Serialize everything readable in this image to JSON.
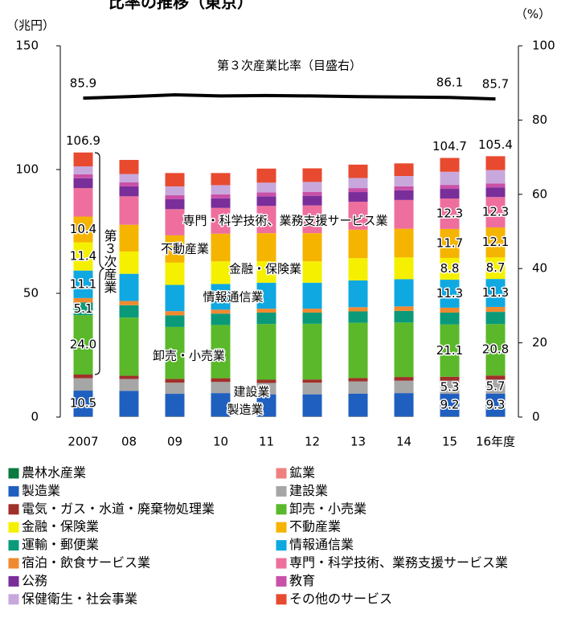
{
  "chart_data": {
    "type": "bar",
    "title": "比率の推移（東京）",
    "y_unit": "（兆円）",
    "y2_unit": "（%）",
    "categories": [
      "2007",
      "08",
      "09",
      "10",
      "11",
      "12",
      "13",
      "14",
      "15",
      "16年度"
    ],
    "ylim": [
      0,
      150
    ],
    "yticks": [
      0,
      50,
      100,
      150
    ],
    "y2lim": [
      0,
      100
    ],
    "y2ticks": [
      0,
      20,
      40,
      60,
      80,
      100
    ],
    "stacked": true,
    "total_labels": [
      "106.9",
      null,
      null,
      null,
      null,
      null,
      null,
      null,
      "104.7",
      "105.4"
    ],
    "series": [
      {
        "name": "農林水産業",
        "color": "#0b7a3e",
        "values": [
          0.1,
          0.1,
          0.1,
          0.1,
          0.1,
          0.1,
          0.1,
          0.1,
          0.1,
          0.1
        ]
      },
      {
        "name": "鉱業",
        "color": "#f08080",
        "values": [
          0.1,
          0.1,
          0.1,
          0.1,
          0.1,
          0.1,
          0.1,
          0.1,
          0.1,
          0.1
        ]
      },
      {
        "name": "製造業",
        "color": "#1f5fbf",
        "values": [
          10.5,
          10.4,
          9.2,
          9.5,
          9.0,
          9.0,
          9.3,
          9.5,
          9.2,
          9.3
        ],
        "value_labels": [
          "10.5",
          null,
          null,
          null,
          null,
          null,
          null,
          null,
          "9.2",
          "9.3"
        ]
      },
      {
        "name": "建設業",
        "color": "#a6a6a6",
        "values": [
          5.0,
          4.8,
          4.5,
          4.5,
          4.6,
          4.7,
          4.9,
          5.0,
          5.3,
          5.7
        ],
        "value_labels": [
          null,
          null,
          null,
          null,
          null,
          null,
          null,
          null,
          "5.3",
          "5.7"
        ]
      },
      {
        "name": "電気・ガス・水道・廃棄物処理業",
        "color": "#a0302a",
        "values": [
          1.5,
          1.3,
          1.5,
          1.5,
          1.3,
          1.3,
          1.4,
          1.5,
          1.6,
          1.6
        ]
      },
      {
        "name": "卸売・小売業",
        "color": "#5ab82a",
        "values": [
          24.0,
          23.5,
          21.0,
          21.5,
          22.5,
          22.5,
          22.3,
          22.0,
          21.1,
          20.8
        ],
        "value_labels": [
          "24.0",
          null,
          null,
          null,
          null,
          null,
          null,
          null,
          "21.1",
          "20.8"
        ]
      },
      {
        "name": "金融・保険業",
        "color": "#f5f000",
        "values": [
          11.4,
          9.0,
          9.0,
          9.1,
          8.7,
          8.6,
          9.0,
          8.8,
          8.8,
          8.7
        ],
        "value_labels": [
          "11.4",
          null,
          null,
          null,
          null,
          null,
          null,
          null,
          "8.8",
          "8.7"
        ]
      },
      {
        "name": "不動産業",
        "color": "#f5b400",
        "values": [
          10.4,
          10.8,
          11.0,
          11.2,
          11.3,
          11.4,
          11.5,
          11.6,
          11.7,
          12.1
        ],
        "value_labels": [
          "10.4",
          null,
          null,
          null,
          null,
          null,
          null,
          null,
          "11.7",
          "12.1"
        ]
      },
      {
        "name": "運輸・郵便業",
        "color": "#0a9a7a",
        "values": [
          5.1,
          5.0,
          4.7,
          4.6,
          4.6,
          4.5,
          4.6,
          4.7,
          4.8,
          4.9
        ],
        "value_labels": [
          "5.1",
          null,
          null,
          null,
          null,
          null,
          null,
          null,
          null,
          null
        ]
      },
      {
        "name": "情報通信業",
        "color": "#10a8e0",
        "values": [
          11.1,
          11.0,
          10.6,
          10.4,
          10.5,
          10.5,
          10.8,
          11.0,
          11.3,
          11.3
        ],
        "value_labels": [
          "11.1",
          null,
          null,
          null,
          null,
          null,
          null,
          null,
          "11.3",
          "11.3"
        ]
      },
      {
        "name": "宿泊・飲食サービス業",
        "color": "#f08a30",
        "values": [
          1.8,
          1.7,
          1.7,
          1.6,
          1.6,
          1.6,
          1.7,
          1.8,
          2.0,
          2.0
        ]
      },
      {
        "name": "専門・科学技術、業務支援サービス業",
        "color": "#ee6f9e",
        "values": [
          11.5,
          11.5,
          10.6,
          10.4,
          11.0,
          11.2,
          11.3,
          11.6,
          12.3,
          12.3
        ],
        "value_labels": [
          null,
          null,
          null,
          null,
          null,
          null,
          null,
          null,
          "12.3",
          "12.3"
        ]
      },
      {
        "name": "公務",
        "color": "#7a2e9a",
        "values": [
          4.0,
          4.0,
          4.0,
          3.9,
          3.9,
          3.9,
          3.9,
          3.9,
          3.9,
          3.9
        ]
      },
      {
        "name": "教育",
        "color": "#c850a8",
        "values": [
          1.6,
          1.6,
          1.6,
          1.6,
          1.6,
          1.6,
          1.6,
          1.6,
          1.6,
          1.6
        ]
      },
      {
        "name": "保健衛生・社会事業",
        "color": "#c8a8dc",
        "values": [
          3.2,
          3.4,
          3.6,
          3.7,
          3.9,
          4.0,
          4.1,
          4.2,
          5.3,
          5.4
        ]
      },
      {
        "name": "その他のサービス",
        "color": "#e84a30",
        "values": [
          5.6,
          5.7,
          5.4,
          4.9,
          5.7,
          5.5,
          5.4,
          5.1,
          5.6,
          5.6
        ]
      }
    ],
    "line_series": {
      "name": "第３次産業比率（目盛右）",
      "color": "#000000",
      "axis": "y2",
      "values": [
        85.9,
        86.3,
        86.8,
        86.5,
        86.6,
        86.5,
        86.3,
        86.2,
        86.1,
        85.7
      ],
      "value_labels": [
        "85.9",
        null,
        null,
        null,
        null,
        null,
        null,
        null,
        "86.1",
        "85.7"
      ]
    },
    "bracket_label": "第３次産業",
    "annotations": [
      "専門・科学技術、業務支援サービス業",
      "不動産業",
      "金融・保険業",
      "情報通信業",
      "卸売・小売業",
      "建設業",
      "製造業"
    ]
  }
}
